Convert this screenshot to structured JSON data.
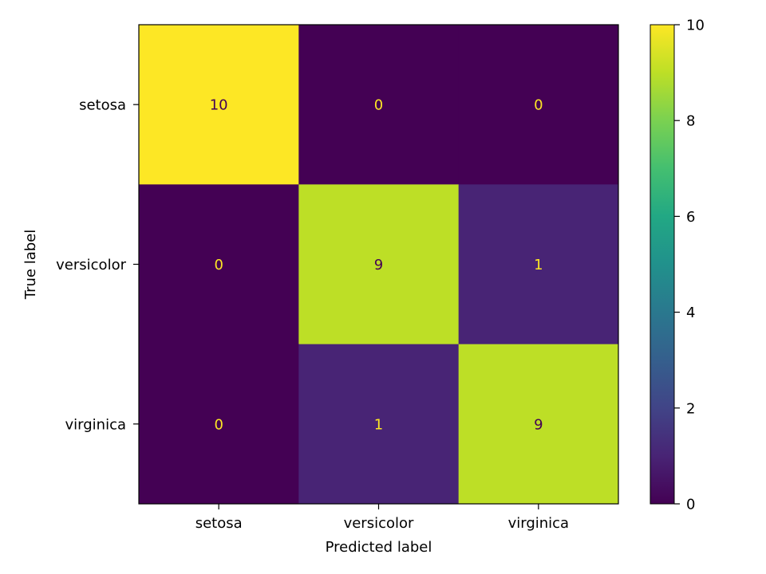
{
  "chart_data": {
    "type": "heatmap",
    "title": "",
    "xlabel": "Predicted label",
    "ylabel": "True label",
    "x_categories": [
      "setosa",
      "versicolor",
      "virginica"
    ],
    "y_categories": [
      "setosa",
      "versicolor",
      "virginica"
    ],
    "matrix": [
      [
        10,
        0,
        0
      ],
      [
        0,
        9,
        1
      ],
      [
        0,
        1,
        9
      ]
    ],
    "matrix_labels": [
      [
        "10",
        "0",
        "0"
      ],
      [
        "0",
        "9",
        "1"
      ],
      [
        "0",
        "1",
        "9"
      ]
    ],
    "colormap": "viridis",
    "color_range": [
      0,
      10
    ],
    "colorbar_ticks": [
      0,
      2,
      4,
      6,
      8,
      10
    ],
    "colorbar_tick_labels": [
      "0",
      "2",
      "4",
      "6",
      "8",
      "10"
    ],
    "low_text_color": "#fde725",
    "high_text_color": "#440154"
  }
}
